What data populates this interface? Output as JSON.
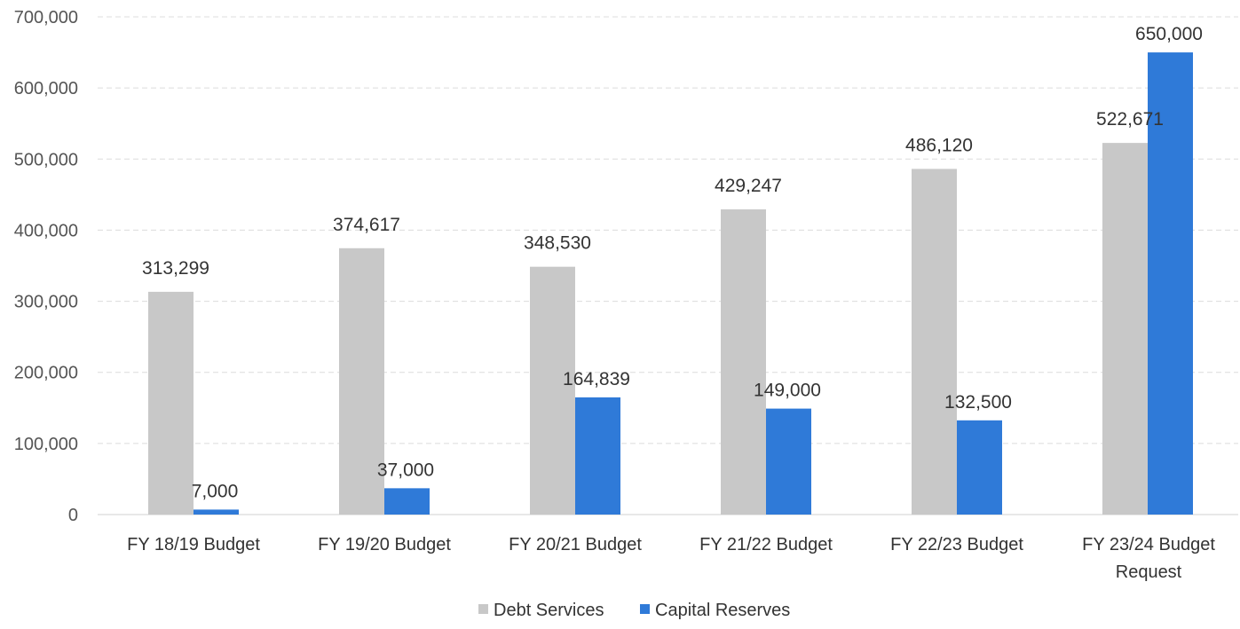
{
  "chart_data": {
    "type": "bar",
    "title": "",
    "xlabel": "",
    "ylabel": "",
    "ylim": [
      0,
      700000
    ],
    "yticks": [
      0,
      100000,
      200000,
      300000,
      400000,
      500000,
      600000,
      700000
    ],
    "ytick_labels": [
      "0",
      "100,000",
      "200,000",
      "300,000",
      "400,000",
      "500,000",
      "600,000",
      "700,000"
    ],
    "grid": true,
    "legend_position": "bottom-center",
    "categories": [
      [
        "FY 18/19 Budget"
      ],
      [
        "FY 19/20 Budget"
      ],
      [
        "FY 20/21 Budget"
      ],
      [
        "FY 21/22 Budget"
      ],
      [
        "FY 22/23 Budget"
      ],
      [
        "FY 23/24 Budget",
        "Request"
      ]
    ],
    "series": [
      {
        "name": "Debt Services",
        "color": "#c8c8c8",
        "values": [
          313299,
          374617,
          348530,
          429247,
          486120,
          522671
        ],
        "labels": [
          "313,299",
          "374,617",
          "348,530",
          "429,247",
          "486,120",
          "522,671"
        ]
      },
      {
        "name": "Capital Reserves",
        "color": "#2f7ad8",
        "values": [
          7000,
          37000,
          164839,
          149000,
          132500,
          650000
        ],
        "labels": [
          "7,000",
          "37,000",
          "164,839",
          "149,000",
          "132,500",
          "650,000"
        ]
      }
    ]
  }
}
